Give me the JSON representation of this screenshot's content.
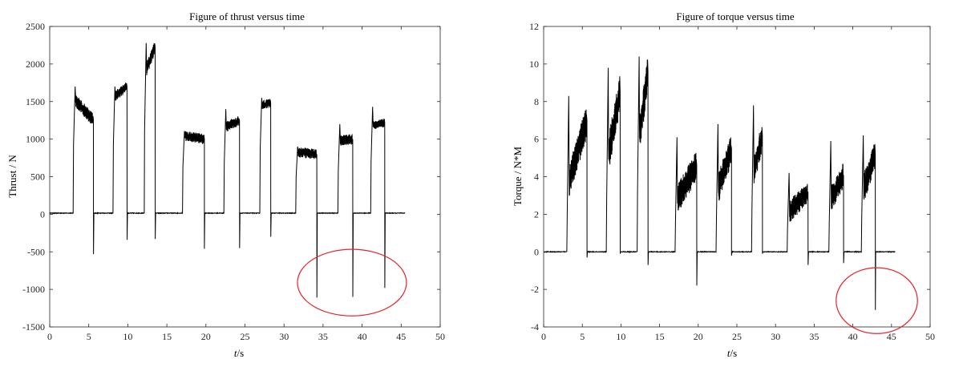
{
  "chart_data": [
    {
      "type": "line",
      "title": "Figure of thrust versus time",
      "xlabel_italic": "t",
      "xlabel_unit": "/s",
      "ylabel": "Thrust / N",
      "xlim": [
        0,
        50
      ],
      "ylim": [
        -1500,
        2500
      ],
      "xticks": [
        0,
        5,
        10,
        15,
        20,
        25,
        30,
        35,
        40,
        45,
        50
      ],
      "yticks": [
        -1500,
        -1000,
        -500,
        0,
        500,
        1000,
        1500,
        2000,
        2500
      ],
      "grid": false,
      "baseline": 15,
      "trace_end": 45.5,
      "steps": [
        {
          "t_on": 3.0,
          "t_off": 5.6,
          "start": 1550,
          "end": 1250,
          "noise": 90,
          "spike": 1700,
          "neg": -530
        },
        {
          "t_on": 8.1,
          "t_off": 9.9,
          "start": 1550,
          "end": 1700,
          "noise": 70,
          "spike": 1700,
          "neg": -340
        },
        {
          "t_on": 12.1,
          "t_off": 13.5,
          "start": 1850,
          "end": 2230,
          "noise": 90,
          "spike": 2280,
          "neg": -330
        },
        {
          "t_on": 17.0,
          "t_off": 19.8,
          "start": 1050,
          "end": 1000,
          "noise": 70,
          "spike": 1100,
          "neg": -460
        },
        {
          "t_on": 22.3,
          "t_off": 24.3,
          "start": 1150,
          "end": 1250,
          "noise": 70,
          "spike": 1400,
          "neg": -450
        },
        {
          "t_on": 26.9,
          "t_off": 28.3,
          "start": 1450,
          "end": 1480,
          "noise": 60,
          "spike": 1550,
          "neg": -300
        },
        {
          "t_on": 31.5,
          "t_off": 34.2,
          "start": 830,
          "end": 800,
          "noise": 70,
          "spike": 900,
          "neg": -1110
        },
        {
          "t_on": 36.9,
          "t_off": 38.8,
          "start": 980,
          "end": 1000,
          "noise": 70,
          "spike": 1200,
          "neg": -1100
        },
        {
          "t_on": 41.1,
          "t_off": 42.9,
          "start": 1180,
          "end": 1220,
          "noise": 60,
          "spike": 1430,
          "neg": -980
        }
      ],
      "highlight_ellipse": {
        "cx": 38.7,
        "cy": -910,
        "rx_s": 7.8,
        "ry": 460,
        "color": "#e8242c"
      }
    },
    {
      "type": "line",
      "title": "Figure of torque versus time",
      "xlabel_italic": "t",
      "xlabel_unit": "/s",
      "ylabel": "Torque / N*M",
      "xlim": [
        0,
        50
      ],
      "ylim": [
        -4,
        12
      ],
      "xticks": [
        0,
        5,
        10,
        15,
        20,
        25,
        30,
        35,
        40,
        45,
        50
      ],
      "yticks": [
        -4,
        -2,
        0,
        2,
        4,
        6,
        8,
        10,
        12
      ],
      "grid": false,
      "baseline": 0.0,
      "trace_end": 45.5,
      "steps": [
        {
          "t_on": 3.0,
          "t_off": 5.6,
          "start": 3.4,
          "end": 7.0,
          "noise": 0.9,
          "spike": 8.3,
          "neg": -0.3
        },
        {
          "t_on": 8.1,
          "t_off": 9.9,
          "start": 4.6,
          "end": 8.5,
          "noise": 1.0,
          "spike": 9.8,
          "neg": -0.1
        },
        {
          "t_on": 12.1,
          "t_off": 13.5,
          "start": 5.4,
          "end": 9.6,
          "noise": 1.0,
          "spike": 10.4,
          "neg": -0.7
        },
        {
          "t_on": 17.0,
          "t_off": 19.8,
          "start": 2.6,
          "end": 4.6,
          "noise": 0.8,
          "spike": 6.1,
          "neg": -1.8
        },
        {
          "t_on": 22.3,
          "t_off": 24.3,
          "start": 3.0,
          "end": 5.5,
          "noise": 0.8,
          "spike": 6.8,
          "neg": -0.2
        },
        {
          "t_on": 26.9,
          "t_off": 28.3,
          "start": 3.8,
          "end": 6.2,
          "noise": 0.8,
          "spike": 7.8,
          "neg": -0.1
        },
        {
          "t_on": 31.5,
          "t_off": 34.2,
          "start": 2.0,
          "end": 3.2,
          "noise": 0.6,
          "spike": 4.2,
          "neg": -0.7
        },
        {
          "t_on": 36.9,
          "t_off": 38.8,
          "start": 2.6,
          "end": 4.1,
          "noise": 0.7,
          "spike": 5.9,
          "neg": -0.6
        },
        {
          "t_on": 41.1,
          "t_off": 42.9,
          "start": 3.0,
          "end": 5.2,
          "noise": 0.8,
          "spike": 6.2,
          "neg": -3.1
        }
      ],
      "highlight_ellipse": {
        "cx": 43.1,
        "cy": -2.6,
        "rx_s": 4.3,
        "ry": 1.8,
        "color": "#e8242c"
      }
    }
  ]
}
